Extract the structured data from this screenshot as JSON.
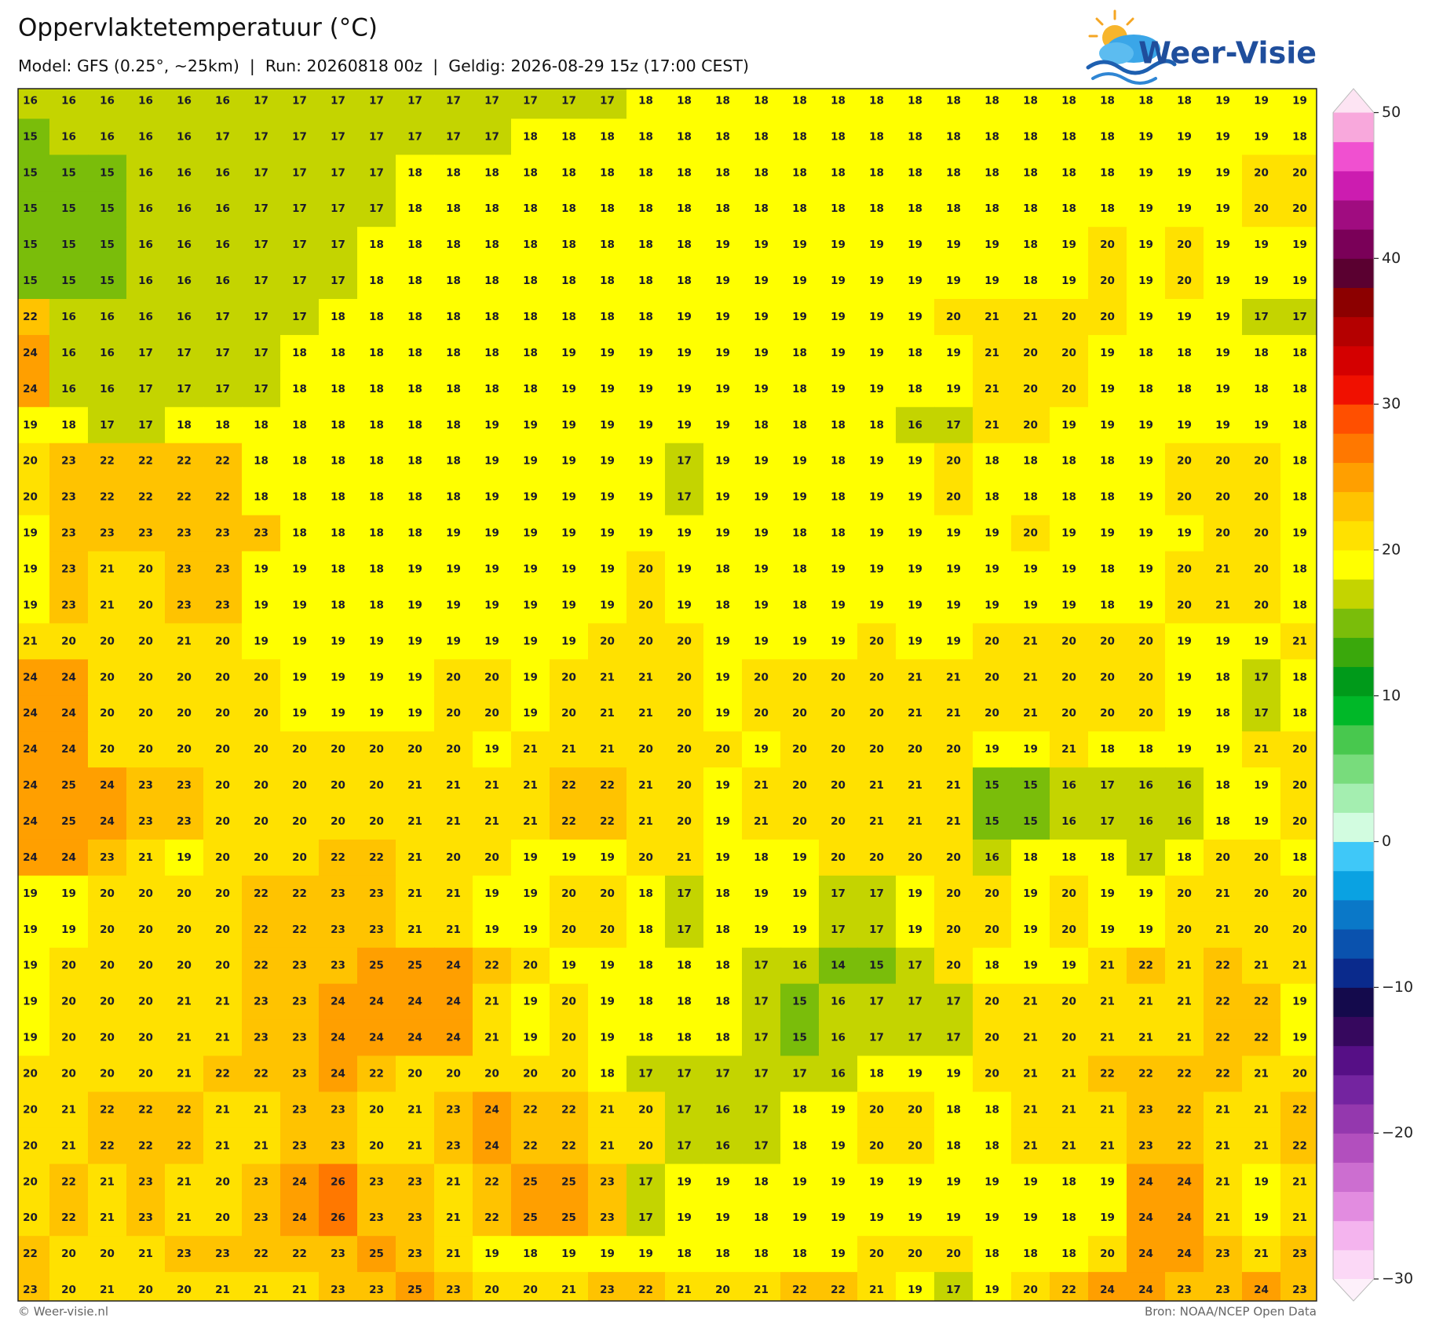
{
  "header": {
    "title": "Oppervlaktetemperatuur (°C)",
    "subtitle": "Model: GFS (0.25°, ~25km)  |  Run: 20260818 00z  |  Geldig: 2026-08-29 15z (17:00 CEST)"
  },
  "logo": {
    "text": "Weer-Visie"
  },
  "grid": {
    "rows": [
      [
        16,
        16,
        16,
        16,
        16,
        16,
        17,
        17,
        17,
        17,
        17,
        17,
        17,
        17,
        17,
        17,
        18,
        18,
        18,
        18,
        18,
        18,
        18,
        18,
        18,
        18,
        18,
        18,
        18,
        18,
        18,
        19,
        19,
        19
      ],
      [
        15,
        16,
        16,
        16,
        16,
        17,
        17,
        17,
        17,
        17,
        17,
        17,
        17,
        18,
        18,
        18,
        18,
        18,
        18,
        18,
        18,
        18,
        18,
        18,
        18,
        18,
        18,
        18,
        18,
        19,
        19,
        19,
        19,
        18
      ],
      [
        15,
        15,
        15,
        16,
        16,
        16,
        17,
        17,
        17,
        17,
        18,
        18,
        18,
        18,
        18,
        18,
        18,
        18,
        18,
        18,
        18,
        18,
        18,
        18,
        18,
        18,
        18,
        18,
        18,
        19,
        19,
        19,
        20,
        20
      ],
      [
        15,
        15,
        15,
        16,
        16,
        16,
        17,
        17,
        17,
        17,
        18,
        18,
        18,
        18,
        18,
        18,
        18,
        18,
        18,
        18,
        18,
        18,
        18,
        18,
        18,
        18,
        18,
        18,
        18,
        19,
        19,
        19,
        20,
        20
      ],
      [
        15,
        15,
        15,
        16,
        16,
        16,
        17,
        17,
        17,
        18,
        18,
        18,
        18,
        18,
        18,
        18,
        18,
        18,
        19,
        19,
        19,
        19,
        19,
        19,
        19,
        19,
        18,
        19,
        20,
        19,
        20,
        19,
        19,
        19
      ],
      [
        15,
        15,
        15,
        16,
        16,
        16,
        17,
        17,
        17,
        18,
        18,
        18,
        18,
        18,
        18,
        18,
        18,
        18,
        19,
        19,
        19,
        19,
        19,
        19,
        19,
        19,
        18,
        19,
        20,
        19,
        20,
        19,
        19,
        19
      ],
      [
        22,
        16,
        16,
        16,
        16,
        17,
        17,
        17,
        18,
        18,
        18,
        18,
        18,
        18,
        18,
        18,
        18,
        19,
        19,
        19,
        19,
        19,
        19,
        19,
        20,
        21,
        21,
        20,
        20,
        19,
        19,
        19,
        17,
        17
      ],
      [
        24,
        16,
        16,
        17,
        17,
        17,
        17,
        18,
        18,
        18,
        18,
        18,
        18,
        18,
        19,
        19,
        19,
        19,
        19,
        19,
        18,
        19,
        19,
        18,
        19,
        21,
        20,
        20,
        19,
        18,
        18,
        19,
        18,
        18
      ],
      [
        24,
        16,
        16,
        17,
        17,
        17,
        17,
        18,
        18,
        18,
        18,
        18,
        18,
        18,
        19,
        19,
        19,
        19,
        19,
        19,
        18,
        19,
        19,
        18,
        19,
        21,
        20,
        20,
        19,
        18,
        18,
        19,
        18,
        18
      ],
      [
        19,
        18,
        17,
        17,
        18,
        18,
        18,
        18,
        18,
        18,
        18,
        18,
        19,
        19,
        19,
        19,
        19,
        19,
        19,
        18,
        18,
        18,
        18,
        16,
        17,
        21,
        20,
        19,
        19,
        19,
        19,
        19,
        19,
        18
      ],
      [
        20,
        23,
        22,
        22,
        22,
        22,
        18,
        18,
        18,
        18,
        18,
        18,
        19,
        19,
        19,
        19,
        19,
        17,
        19,
        19,
        19,
        18,
        19,
        19,
        20,
        18,
        18,
        18,
        18,
        19,
        20,
        20,
        20,
        18
      ],
      [
        20,
        23,
        22,
        22,
        22,
        22,
        18,
        18,
        18,
        18,
        18,
        18,
        19,
        19,
        19,
        19,
        19,
        17,
        19,
        19,
        19,
        18,
        19,
        19,
        20,
        18,
        18,
        18,
        18,
        19,
        20,
        20,
        20,
        18
      ],
      [
        19,
        23,
        23,
        23,
        23,
        23,
        23,
        18,
        18,
        18,
        18,
        19,
        19,
        19,
        19,
        19,
        19,
        19,
        19,
        19,
        18,
        18,
        19,
        19,
        19,
        19,
        20,
        19,
        19,
        19,
        19,
        20,
        20,
        19
      ],
      [
        19,
        23,
        21,
        20,
        23,
        23,
        19,
        19,
        18,
        18,
        19,
        19,
        19,
        19,
        19,
        19,
        20,
        19,
        18,
        19,
        18,
        19,
        19,
        19,
        19,
        19,
        19,
        19,
        18,
        19,
        20,
        21,
        20,
        18
      ],
      [
        19,
        23,
        21,
        20,
        23,
        23,
        19,
        19,
        18,
        18,
        19,
        19,
        19,
        19,
        19,
        19,
        20,
        19,
        18,
        19,
        18,
        19,
        19,
        19,
        19,
        19,
        19,
        19,
        18,
        19,
        20,
        21,
        20,
        18
      ],
      [
        21,
        20,
        20,
        20,
        21,
        20,
        19,
        19,
        19,
        19,
        19,
        19,
        19,
        19,
        19,
        20,
        20,
        20,
        19,
        19,
        19,
        19,
        20,
        19,
        19,
        20,
        21,
        20,
        20,
        20,
        19,
        19,
        19,
        21
      ],
      [
        24,
        24,
        20,
        20,
        20,
        20,
        20,
        19,
        19,
        19,
        19,
        20,
        20,
        19,
        20,
        21,
        21,
        20,
        19,
        20,
        20,
        20,
        20,
        21,
        21,
        20,
        21,
        20,
        20,
        20,
        19,
        18,
        17,
        18
      ],
      [
        24,
        24,
        20,
        20,
        20,
        20,
        20,
        19,
        19,
        19,
        19,
        20,
        20,
        19,
        20,
        21,
        21,
        20,
        19,
        20,
        20,
        20,
        20,
        21,
        21,
        20,
        21,
        20,
        20,
        20,
        19,
        18,
        17,
        18
      ],
      [
        24,
        24,
        20,
        20,
        20,
        20,
        20,
        20,
        20,
        20,
        20,
        20,
        19,
        21,
        21,
        21,
        20,
        20,
        20,
        19,
        20,
        20,
        20,
        20,
        20,
        19,
        19,
        21,
        18,
        18,
        19,
        19,
        21,
        20
      ],
      [
        24,
        25,
        24,
        23,
        23,
        20,
        20,
        20,
        20,
        20,
        21,
        21,
        21,
        21,
        22,
        22,
        21,
        20,
        19,
        21,
        20,
        20,
        21,
        21,
        21,
        15,
        15,
        16,
        17,
        16,
        16,
        18,
        19,
        20
      ],
      [
        24,
        25,
        24,
        23,
        23,
        20,
        20,
        20,
        20,
        20,
        21,
        21,
        21,
        21,
        22,
        22,
        21,
        20,
        19,
        21,
        20,
        20,
        21,
        21,
        21,
        15,
        15,
        16,
        17,
        16,
        16,
        18,
        19,
        20
      ],
      [
        24,
        24,
        23,
        21,
        19,
        20,
        20,
        20,
        22,
        22,
        21,
        20,
        20,
        19,
        19,
        19,
        20,
        21,
        19,
        18,
        19,
        20,
        20,
        20,
        20,
        16,
        18,
        18,
        18,
        17,
        18,
        20,
        20,
        18
      ],
      [
        19,
        19,
        20,
        20,
        20,
        20,
        22,
        22,
        23,
        23,
        21,
        21,
        19,
        19,
        20,
        20,
        18,
        17,
        18,
        19,
        19,
        17,
        17,
        19,
        20,
        20,
        19,
        20,
        19,
        19,
        20,
        21,
        20,
        20
      ],
      [
        19,
        19,
        20,
        20,
        20,
        20,
        22,
        22,
        23,
        23,
        21,
        21,
        19,
        19,
        20,
        20,
        18,
        17,
        18,
        19,
        19,
        17,
        17,
        19,
        20,
        20,
        19,
        20,
        19,
        19,
        20,
        21,
        20,
        20
      ],
      [
        19,
        20,
        20,
        20,
        20,
        20,
        22,
        23,
        23,
        25,
        25,
        24,
        22,
        20,
        19,
        19,
        18,
        18,
        18,
        17,
        16,
        14,
        15,
        17,
        20,
        18,
        19,
        19,
        21,
        22,
        21,
        22,
        21,
        21
      ],
      [
        19,
        20,
        20,
        20,
        21,
        21,
        23,
        23,
        24,
        24,
        24,
        24,
        21,
        19,
        20,
        19,
        18,
        18,
        18,
        17,
        15,
        16,
        17,
        17,
        17,
        20,
        21,
        20,
        21,
        21,
        21,
        22,
        22,
        19
      ],
      [
        19,
        20,
        20,
        20,
        21,
        21,
        23,
        23,
        24,
        24,
        24,
        24,
        21,
        19,
        20,
        19,
        18,
        18,
        18,
        17,
        15,
        16,
        17,
        17,
        17,
        20,
        21,
        20,
        21,
        21,
        21,
        22,
        22,
        19
      ],
      [
        20,
        20,
        20,
        20,
        21,
        22,
        22,
        23,
        24,
        22,
        20,
        20,
        20,
        20,
        20,
        18,
        17,
        17,
        17,
        17,
        17,
        16,
        18,
        19,
        19,
        20,
        21,
        21,
        22,
        22,
        22,
        22,
        21,
        20
      ],
      [
        20,
        21,
        22,
        22,
        22,
        21,
        21,
        23,
        23,
        20,
        21,
        23,
        24,
        22,
        22,
        21,
        20,
        17,
        16,
        17,
        18,
        19,
        20,
        20,
        18,
        18,
        21,
        21,
        21,
        23,
        22,
        21,
        21,
        22
      ],
      [
        20,
        21,
        22,
        22,
        22,
        21,
        21,
        23,
        23,
        20,
        21,
        23,
        24,
        22,
        22,
        21,
        20,
        17,
        16,
        17,
        18,
        19,
        20,
        20,
        18,
        18,
        21,
        21,
        21,
        23,
        22,
        21,
        21,
        22
      ],
      [
        20,
        22,
        21,
        23,
        21,
        20,
        23,
        24,
        26,
        23,
        23,
        21,
        22,
        25,
        25,
        23,
        17,
        19,
        19,
        18,
        19,
        19,
        19,
        19,
        19,
        19,
        19,
        18,
        19,
        24,
        24,
        21,
        19,
        21
      ],
      [
        20,
        22,
        21,
        23,
        21,
        20,
        23,
        24,
        26,
        23,
        23,
        21,
        22,
        25,
        25,
        23,
        17,
        19,
        19,
        18,
        19,
        19,
        19,
        19,
        19,
        19,
        19,
        18,
        19,
        24,
        24,
        21,
        19,
        21
      ],
      [
        22,
        20,
        20,
        21,
        23,
        23,
        22,
        22,
        23,
        25,
        23,
        21,
        19,
        18,
        19,
        19,
        19,
        18,
        18,
        18,
        18,
        19,
        20,
        20,
        20,
        18,
        18,
        18,
        20,
        24,
        24,
        23,
        21,
        23
      ],
      [
        23,
        20,
        21,
        20,
        20,
        21,
        21,
        21,
        23,
        23,
        25,
        23,
        20,
        20,
        21,
        23,
        22,
        21,
        20,
        21,
        22,
        22,
        21,
        19,
        17,
        19,
        20,
        22,
        24,
        24,
        23,
        23,
        24,
        23
      ]
    ]
  },
  "colorbar": {
    "lim": [
      -30,
      50
    ],
    "ticks": [
      50,
      40,
      30,
      20,
      10,
      0,
      {
        "value": -10,
        "label": "−10"
      },
      {
        "value": -20,
        "label": "−20"
      },
      {
        "value": -30,
        "label": "−30"
      }
    ],
    "colors": [
      "#fbd8f6",
      "#f4b4ee",
      "#e28ce0",
      "#cc6ed0",
      "#b24fbe",
      "#9438ae",
      "#7424a0",
      "#560f86",
      "#36085e",
      "#140a4c",
      "#0a2a8c",
      "#0a52ae",
      "#0a78c8",
      "#0aa2e2",
      "#3fc8f8",
      "#d2fce0",
      "#a4eeb0",
      "#78dc7c",
      "#48c84e",
      "#00b828",
      "#009a1a",
      "#3aa80c",
      "#7abd0a",
      "#c4d400",
      "#ffff00",
      "#ffe100",
      "#ffc300",
      "#ff9f00",
      "#ff7800",
      "#ff4f00",
      "#f01000",
      "#d40000",
      "#b40000",
      "#8c0000",
      "#5a0030",
      "#7a0058",
      "#a00c80",
      "#cc1cb0",
      "#f050d0",
      "#f8a8dc"
    ],
    "under_color": "#fdf0fa",
    "over_color": "#fde4f3"
  },
  "footer": {
    "left": "© Weer-visie.nl",
    "right": "Bron: NOAA/NCEP Open Data"
  }
}
